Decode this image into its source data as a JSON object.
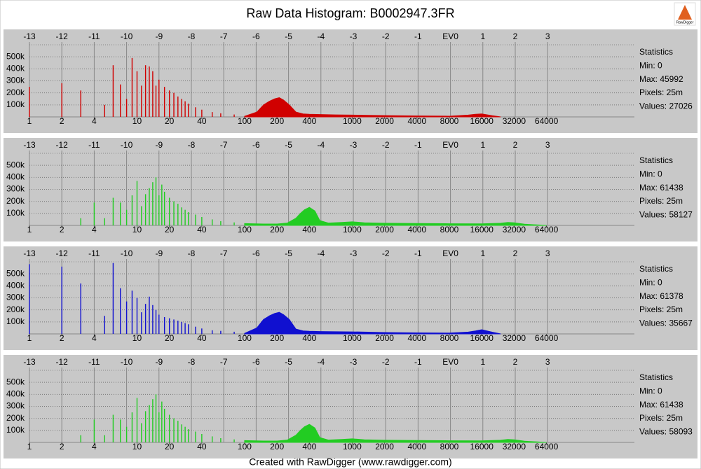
{
  "title": "Raw Data Histogram: B0002947.3FR",
  "logo": "RawDigger",
  "footer": "Created with RawDigger (www.rawdigger.com)",
  "chart_data": [
    {
      "type": "stem",
      "color": "#d00000",
      "x_scale": "log",
      "xlim": [
        1,
        420000
      ],
      "xticks": [
        1,
        2,
        4,
        10,
        20,
        40,
        100,
        200,
        400,
        1000,
        2000,
        4000,
        8000,
        16000,
        32000,
        64000
      ],
      "x2lim": [
        -13,
        5.68
      ],
      "x2ticks": [
        -13,
        -12,
        -11,
        -10,
        -9,
        -8,
        -7,
        -6,
        -5,
        -4,
        -3,
        -2,
        -1,
        {
          "value": 0,
          "label": "EV0"
        },
        1,
        2,
        3
      ],
      "ylim": [
        0,
        600000
      ],
      "yticks": [
        {
          "value": 100000,
          "label": "100k"
        },
        {
          "value": 200000,
          "label": "200k"
        },
        {
          "value": 300000,
          "label": "300k"
        },
        {
          "value": 400000,
          "label": "400k"
        },
        {
          "value": 500000,
          "label": "500k"
        }
      ],
      "grid": true,
      "stats": [
        "Statistics",
        "Min: 0",
        "Max: 45992",
        "Pixels: 25m",
        "Values: 27026"
      ],
      "bars": {
        "x": [
          1,
          2,
          3,
          5,
          6,
          7,
          8,
          9,
          10,
          11,
          12,
          13,
          14,
          15,
          16,
          18,
          20,
          22,
          24,
          26,
          28,
          30,
          35,
          40,
          50,
          60,
          80
        ],
        "values": [
          250000,
          280000,
          220000,
          100000,
          430000,
          270000,
          150000,
          490000,
          380000,
          260000,
          430000,
          420000,
          380000,
          260000,
          310000,
          250000,
          220000,
          200000,
          170000,
          150000,
          130000,
          110000,
          80000,
          60000,
          40000,
          30000,
          20000
        ]
      },
      "area": {
        "x": [
          100,
          130,
          150,
          170,
          190,
          210,
          230,
          260,
          300,
          350,
          400,
          500,
          700,
          1000,
          2000,
          4000,
          8000,
          12000,
          14000,
          16000,
          20000,
          24000
        ],
        "values": [
          5000,
          40000,
          100000,
          130000,
          150000,
          160000,
          140000,
          100000,
          40000,
          25000,
          22000,
          20000,
          17000,
          15000,
          11000,
          8000,
          6000,
          15000,
          22000,
          25000,
          10000,
          0
        ]
      }
    },
    {
      "type": "stem",
      "color": "#22cc22",
      "x_scale": "log",
      "xlim": [
        1,
        420000
      ],
      "xticks": [
        1,
        2,
        4,
        10,
        20,
        40,
        100,
        200,
        400,
        1000,
        2000,
        4000,
        8000,
        16000,
        32000,
        64000
      ],
      "x2lim": [
        -13,
        5.68
      ],
      "x2ticks": [
        -13,
        -12,
        -11,
        -10,
        -9,
        -8,
        -7,
        -6,
        -5,
        -4,
        -3,
        -2,
        -1,
        {
          "value": 0,
          "label": "EV0"
        },
        1,
        2,
        3
      ],
      "ylim": [
        0,
        600000
      ],
      "yticks": [
        {
          "value": 100000,
          "label": "100k"
        },
        {
          "value": 200000,
          "label": "200k"
        },
        {
          "value": 300000,
          "label": "300k"
        },
        {
          "value": 400000,
          "label": "400k"
        },
        {
          "value": 500000,
          "label": "500k"
        }
      ],
      "grid": true,
      "stats": [
        "Statistics",
        "Min: 0",
        "Max: 61438",
        "Pixels: 25m",
        "Values: 58127"
      ],
      "bars": {
        "x": [
          3,
          4,
          5,
          6,
          7,
          8,
          9,
          10,
          11,
          12,
          13,
          14,
          15,
          16,
          17,
          18,
          20,
          22,
          24,
          26,
          28,
          30,
          35,
          40,
          50,
          60,
          80
        ],
        "values": [
          60000,
          190000,
          60000,
          230000,
          190000,
          130000,
          250000,
          370000,
          160000,
          260000,
          310000,
          360000,
          400000,
          250000,
          340000,
          280000,
          230000,
          200000,
          180000,
          150000,
          130000,
          110000,
          90000,
          70000,
          50000,
          35000,
          25000
        ]
      },
      "area": {
        "x": [
          100,
          150,
          200,
          250,
          300,
          330,
          360,
          400,
          450,
          500,
          600,
          800,
          1000,
          1300,
          2000,
          4000,
          8000,
          16000,
          24000,
          28000,
          32000,
          40000,
          64000
        ],
        "values": [
          15000,
          12000,
          12000,
          20000,
          60000,
          100000,
          130000,
          150000,
          120000,
          40000,
          20000,
          25000,
          30000,
          22000,
          18000,
          16000,
          14000,
          13000,
          18000,
          25000,
          22000,
          10000,
          0
        ]
      }
    },
    {
      "type": "stem",
      "color": "#1010d0",
      "x_scale": "log",
      "xlim": [
        1,
        420000
      ],
      "xticks": [
        1,
        2,
        4,
        10,
        20,
        40,
        100,
        200,
        400,
        1000,
        2000,
        4000,
        8000,
        16000,
        32000,
        64000
      ],
      "x2lim": [
        -13,
        5.68
      ],
      "x2ticks": [
        -13,
        -12,
        -11,
        -10,
        -9,
        -8,
        -7,
        -6,
        -5,
        -4,
        -3,
        -2,
        -1,
        {
          "value": 0,
          "label": "EV0"
        },
        1,
        2,
        3
      ],
      "ylim": [
        0,
        600000
      ],
      "yticks": [
        {
          "value": 100000,
          "label": "100k"
        },
        {
          "value": 200000,
          "label": "200k"
        },
        {
          "value": 300000,
          "label": "300k"
        },
        {
          "value": 400000,
          "label": "400k"
        },
        {
          "value": 500000,
          "label": "500k"
        }
      ],
      "grid": true,
      "stats": [
        "Statistics",
        "Min: 0",
        "Max: 61378",
        "Pixels: 25m",
        "Values: 35667"
      ],
      "bars": {
        "x": [
          1,
          2,
          3,
          5,
          6,
          7,
          8,
          9,
          10,
          11,
          12,
          13,
          14,
          15,
          16,
          18,
          20,
          22,
          24,
          26,
          28,
          30,
          35,
          40,
          50,
          60,
          80
        ],
        "values": [
          580000,
          560000,
          420000,
          150000,
          590000,
          380000,
          270000,
          360000,
          300000,
          180000,
          250000,
          310000,
          240000,
          200000,
          160000,
          140000,
          130000,
          120000,
          110000,
          100000,
          90000,
          80000,
          60000,
          45000,
          30000,
          25000,
          18000
        ]
      },
      "area": {
        "x": [
          100,
          130,
          150,
          170,
          190,
          210,
          230,
          260,
          300,
          350,
          400,
          500,
          700,
          1000,
          2000,
          4000,
          8000,
          12000,
          14000,
          16000,
          20000,
          24000
        ],
        "values": [
          5000,
          50000,
          120000,
          150000,
          170000,
          180000,
          160000,
          120000,
          40000,
          25000,
          22000,
          20000,
          18000,
          17000,
          12000,
          9000,
          7000,
          15000,
          25000,
          35000,
          15000,
          0
        ]
      }
    },
    {
      "type": "stem",
      "color": "#22cc22",
      "x_scale": "log",
      "xlim": [
        1,
        420000
      ],
      "xticks": [
        1,
        2,
        4,
        10,
        20,
        40,
        100,
        200,
        400,
        1000,
        2000,
        4000,
        8000,
        16000,
        32000,
        64000
      ],
      "x2lim": [
        -13,
        5.68
      ],
      "x2ticks": [
        -13,
        -12,
        -11,
        -10,
        -9,
        -8,
        -7,
        -6,
        -5,
        -4,
        -3,
        -2,
        -1,
        {
          "value": 0,
          "label": "EV0"
        },
        1,
        2,
        3
      ],
      "ylim": [
        0,
        600000
      ],
      "yticks": [
        {
          "value": 100000,
          "label": "100k"
        },
        {
          "value": 200000,
          "label": "200k"
        },
        {
          "value": 300000,
          "label": "300k"
        },
        {
          "value": 400000,
          "label": "400k"
        },
        {
          "value": 500000,
          "label": "500k"
        }
      ],
      "grid": true,
      "stats": [
        "Statistics",
        "Min: 0",
        "Max: 61438",
        "Pixels: 25m",
        "Values: 58093"
      ],
      "bars": {
        "x": [
          3,
          4,
          5,
          6,
          7,
          8,
          9,
          10,
          11,
          12,
          13,
          14,
          15,
          16,
          17,
          18,
          20,
          22,
          24,
          26,
          28,
          30,
          35,
          40,
          50,
          60,
          80
        ],
        "values": [
          60000,
          190000,
          60000,
          230000,
          190000,
          130000,
          250000,
          370000,
          160000,
          260000,
          310000,
          360000,
          400000,
          250000,
          340000,
          280000,
          230000,
          200000,
          180000,
          150000,
          130000,
          110000,
          90000,
          70000,
          50000,
          35000,
          25000
        ]
      },
      "area": {
        "x": [
          100,
          150,
          200,
          250,
          300,
          330,
          360,
          400,
          450,
          500,
          600,
          800,
          1000,
          1300,
          2000,
          4000,
          8000,
          16000,
          24000,
          28000,
          32000,
          40000,
          64000
        ],
        "values": [
          15000,
          12000,
          12000,
          20000,
          60000,
          100000,
          130000,
          150000,
          120000,
          40000,
          20000,
          25000,
          30000,
          22000,
          18000,
          16000,
          14000,
          13000,
          18000,
          25000,
          22000,
          10000,
          0
        ]
      }
    }
  ]
}
